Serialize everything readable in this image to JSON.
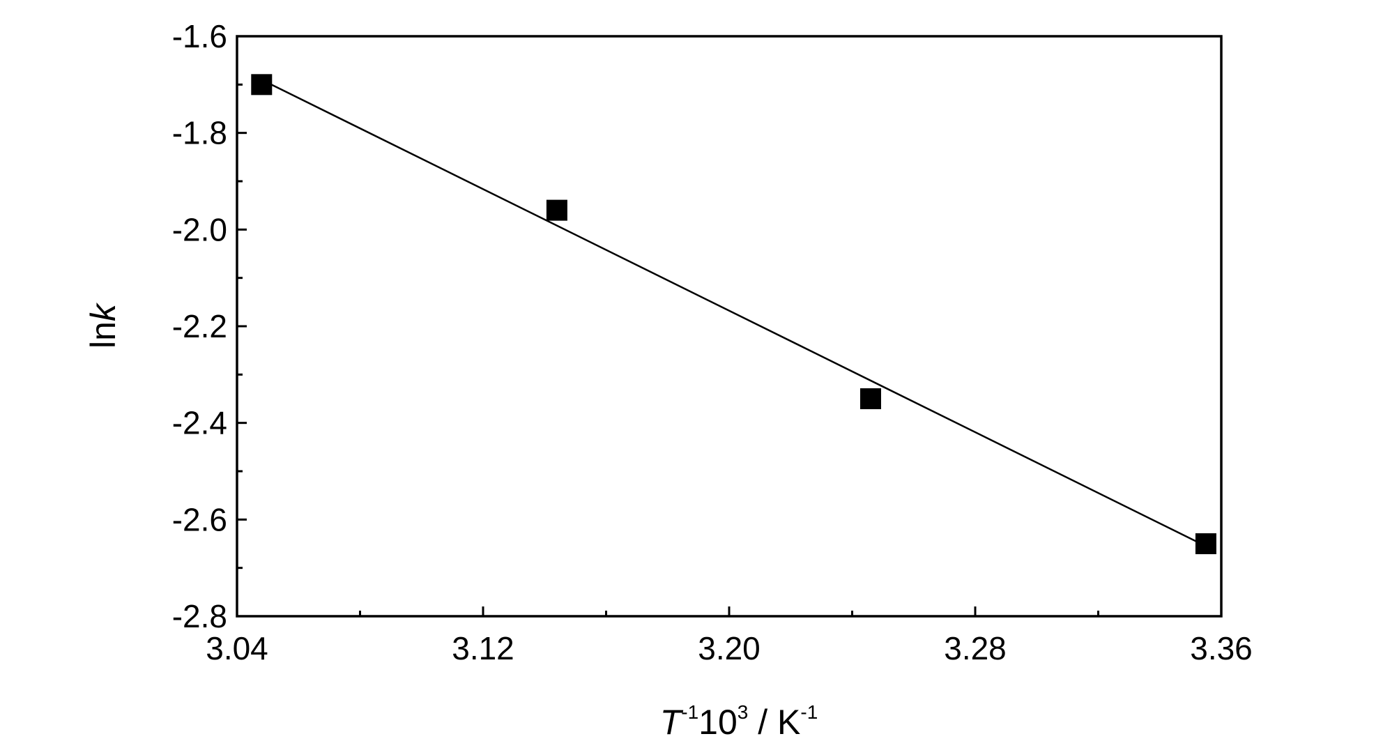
{
  "chart_data": {
    "type": "scatter",
    "title": "",
    "xlabel_parts": {
      "T": "T",
      "sup1": "-1",
      "mid": "10",
      "sup2": "3",
      "unit": " / K",
      "sup3": "-1"
    },
    "ylabel_parts": {
      "ln": "ln",
      "k": "k"
    },
    "xlim": [
      3.04,
      3.36
    ],
    "ylim": [
      -2.8,
      -1.6
    ],
    "xticks": [
      3.04,
      3.12,
      3.2,
      3.28,
      3.36
    ],
    "xtick_labels": [
      "3.04",
      "3.12",
      "3.20",
      "3.28",
      "3.36"
    ],
    "yticks": [
      -2.8,
      -2.6,
      -2.4,
      -2.2,
      -2.0,
      -1.8,
      -1.6
    ],
    "ytick_labels": [
      "-2.8",
      "-2.6",
      "-2.4",
      "-2.2",
      "-2.0",
      "-1.8",
      "-1.6"
    ],
    "series": [
      {
        "marker": "square",
        "color": "#000000",
        "points": [
          {
            "x": 3.048,
            "y": -1.7
          },
          {
            "x": 3.144,
            "y": -1.96
          },
          {
            "x": 3.246,
            "y": -2.35
          },
          {
            "x": 3.355,
            "y": -2.65
          }
        ]
      }
    ],
    "fit_line": {
      "x": [
        3.048,
        3.355
      ],
      "y": [
        -1.69,
        -2.655
      ],
      "color": "#000000"
    },
    "grid": false,
    "legend": "none"
  }
}
